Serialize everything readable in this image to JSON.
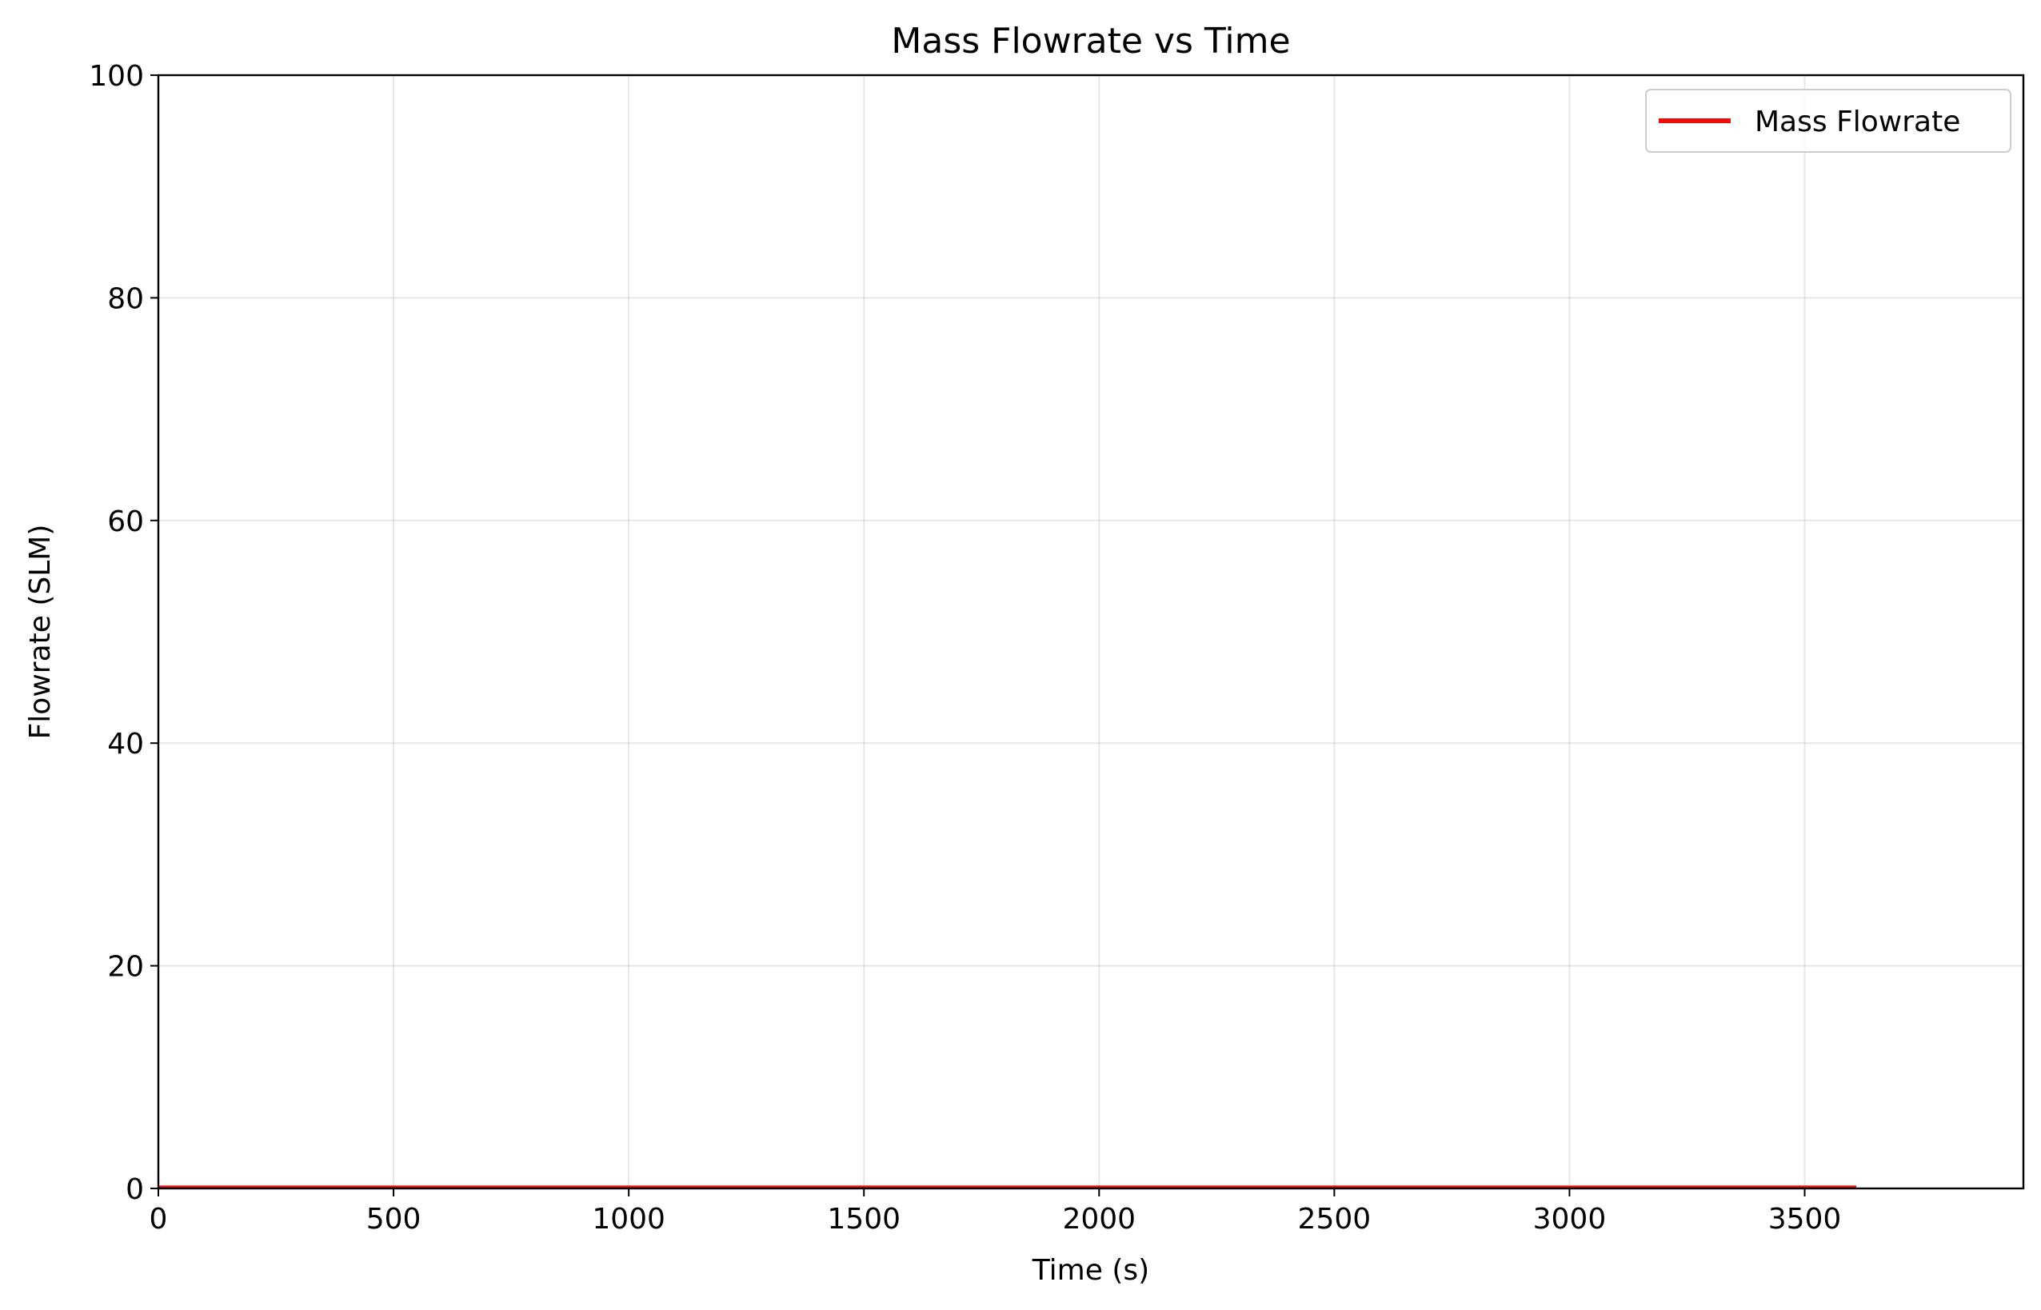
{
  "chart_data": {
    "type": "line",
    "title": "Mass Flowrate vs Time",
    "xlabel": "Time (s)",
    "ylabel": "Flowrate (SLM)",
    "xlim": [
      0,
      3965
    ],
    "ylim": [
      0,
      100
    ],
    "x_ticks": [
      0,
      500,
      1000,
      1500,
      2000,
      2500,
      3000,
      3500
    ],
    "y_ticks": [
      0,
      20,
      40,
      60,
      80,
      100
    ],
    "grid": true,
    "legend_position": "top-right",
    "series": [
      {
        "name": "Mass Flowrate",
        "color": "#e8100f",
        "x": [
          0,
          3610
        ],
        "y": [
          0.15,
          0.15
        ]
      }
    ]
  }
}
